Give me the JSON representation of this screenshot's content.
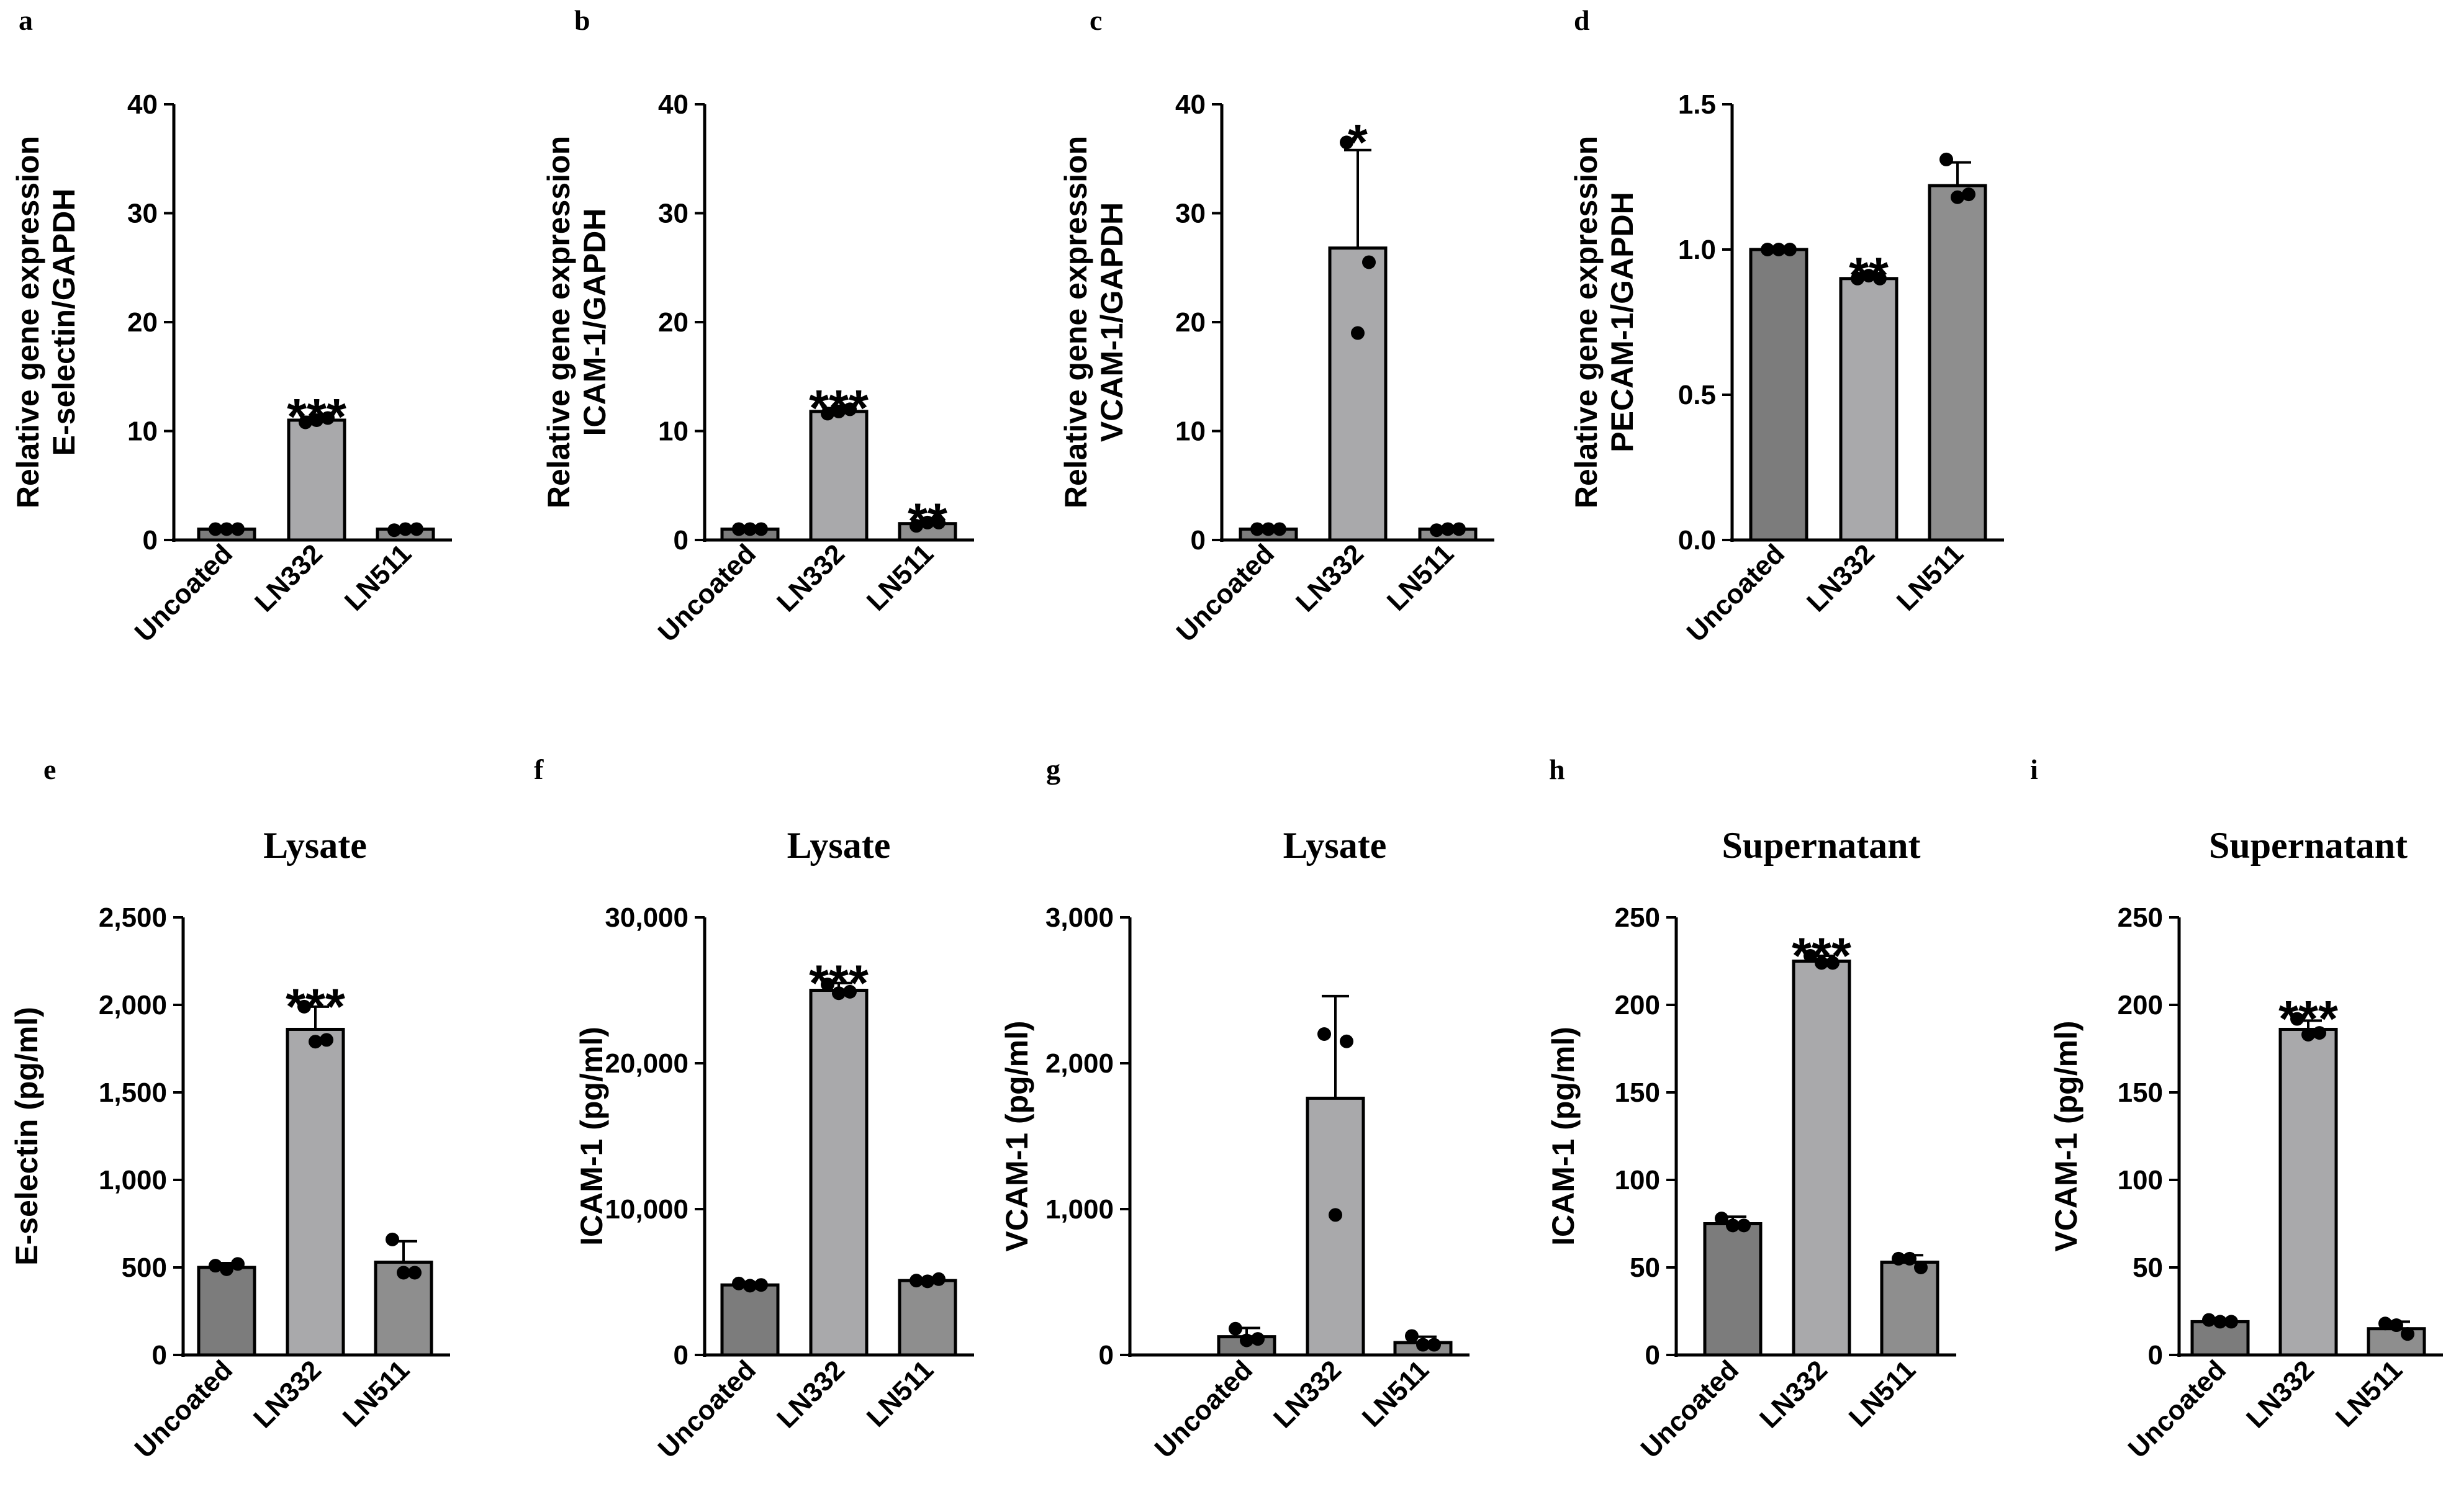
{
  "colors": {
    "dark": "#7c7c7c",
    "light": "#a9a9ab",
    "mid": "#8e8e8e",
    "axis": "#000000"
  },
  "chart_data": [
    {
      "panel": "a",
      "type": "bar",
      "title": "",
      "ylabel": [
        "Relative gene expression",
        "E-selectin/GAPDH"
      ],
      "categories": [
        "Uncoated",
        "LN332",
        "LN511"
      ],
      "values": [
        1,
        11,
        1
      ],
      "errors": [
        0.1,
        0.3,
        0.1
      ],
      "points": [
        [
          1,
          1,
          1
        ],
        [
          10.8,
          11.2,
          11.0
        ],
        [
          0.9,
          1.0,
          1.0
        ]
      ],
      "significance": [
        "",
        "***",
        ""
      ],
      "ylim": [
        0,
        40
      ],
      "yticks": [
        0,
        10,
        20,
        30,
        40
      ],
      "ytick_labels": [
        "0",
        "10",
        "20",
        "30",
        "40"
      ]
    },
    {
      "panel": "b",
      "type": "bar",
      "title": "",
      "ylabel": [
        "Relative gene expression",
        "ICAM-1/GAPDH"
      ],
      "categories": [
        "Uncoated",
        "LN332",
        "LN511"
      ],
      "values": [
        1,
        11.8,
        1.5
      ],
      "errors": [
        0.1,
        0.3,
        0.2
      ],
      "points": [
        [
          1,
          1,
          1
        ],
        [
          11.6,
          12.0,
          11.8
        ],
        [
          1.3,
          1.6,
          1.6
        ]
      ],
      "significance": [
        "",
        "***",
        "**"
      ],
      "ylim": [
        0,
        40
      ],
      "yticks": [
        0,
        10,
        20,
        30,
        40
      ],
      "ytick_labels": [
        "0",
        "10",
        "20",
        "30",
        "40"
      ]
    },
    {
      "panel": "c",
      "type": "bar",
      "title": "",
      "ylabel": [
        "Relative gene expression",
        "VCAM-1/GAPDH"
      ],
      "categories": [
        "Uncoated",
        "LN332",
        "LN511"
      ],
      "values": [
        1,
        26.8,
        1
      ],
      "errors": [
        0.1,
        9,
        0.1
      ],
      "points": [
        [
          1,
          1,
          1
        ],
        [
          36.5,
          25.5,
          19
        ],
        [
          0.9,
          1.0,
          1.0
        ]
      ],
      "significance": [
        "",
        "*",
        ""
      ],
      "ylim": [
        0,
        40
      ],
      "yticks": [
        0,
        10,
        20,
        30,
        40
      ],
      "ytick_labels": [
        "0",
        "10",
        "20",
        "30",
        "40"
      ]
    },
    {
      "panel": "d",
      "type": "bar",
      "title": "",
      "ylabel": [
        "Relative gene expression",
        "PECAM-1/GAPDH"
      ],
      "categories": [
        "Uncoated",
        "LN332",
        "LN511"
      ],
      "values": [
        1.0,
        0.9,
        1.22
      ],
      "errors": [
        0.005,
        0.01,
        0.08
      ],
      "points": [
        [
          1.0,
          1.0,
          1.0
        ],
        [
          0.9,
          0.9,
          0.91
        ],
        [
          1.31,
          1.19,
          1.18
        ]
      ],
      "significance": [
        "",
        "**",
        ""
      ],
      "ylim": [
        0,
        1.5
      ],
      "yticks": [
        0,
        0.5,
        1.0,
        1.5
      ],
      "ytick_labels": [
        "0.0",
        "0.5",
        "1.0",
        "1.5"
      ]
    },
    {
      "panel": "e",
      "type": "bar",
      "title": "Lysate",
      "ylabel": [
        "E-selectin (pg/ml)"
      ],
      "categories": [
        "Uncoated",
        "LN332",
        "LN511"
      ],
      "values": [
        500,
        1860,
        530
      ],
      "errors": [
        25,
        130,
        120
      ],
      "points": [
        [
          510,
          520,
          490
        ],
        [
          1990,
          1800,
          1790
        ],
        [
          660,
          470,
          470
        ]
      ],
      "significance": [
        "",
        "***",
        ""
      ],
      "ylim": [
        0,
        2500
      ],
      "yticks": [
        0,
        500,
        1000,
        1500,
        2000,
        2500
      ],
      "ytick_labels": [
        "0",
        "500",
        "1,000",
        "1,500",
        "2,000",
        "2,500"
      ]
    },
    {
      "panel": "f",
      "type": "bar",
      "title": "Lysate",
      "ylabel": [
        "ICAM-1 (pg/ml)"
      ],
      "categories": [
        "Uncoated",
        "LN332",
        "LN511"
      ],
      "values": [
        4800,
        25000,
        5100
      ],
      "errors": [
        150,
        500,
        150
      ],
      "points": [
        [
          4900,
          4800,
          4750
        ],
        [
          25400,
          24900,
          24800
        ],
        [
          5100,
          5200,
          5050
        ]
      ],
      "significance": [
        "",
        "***",
        ""
      ],
      "ylim": [
        0,
        30000
      ],
      "yticks": [
        0,
        10000,
        20000,
        30000
      ],
      "ytick_labels": [
        "0",
        "10,000",
        "20,000",
        "30,000"
      ]
    },
    {
      "panel": "g",
      "type": "bar",
      "title": "Lysate",
      "ylabel": [
        "VCAM-1 (pg/ml)"
      ],
      "categories": [
        "Uncoated",
        "LN332",
        "LN511"
      ],
      "values": [
        125,
        1760,
        85
      ],
      "errors": [
        60,
        700,
        40
      ],
      "points": [
        [
          180,
          110,
          100
        ],
        [
          2200,
          2150,
          960
        ],
        [
          130,
          70,
          70
        ]
      ],
      "significance": [
        "",
        "",
        ""
      ],
      "ylim": [
        0,
        3000
      ],
      "yticks": [
        0,
        1000,
        2000,
        3000
      ],
      "ytick_labels": [
        "0",
        "1,000",
        "2,000",
        "3,000"
      ]
    },
    {
      "panel": "h",
      "type": "bar",
      "title": "Supernatant",
      "ylabel": [
        "ICAM-1 (pg/ml)"
      ],
      "categories": [
        "Uncoated",
        "LN332",
        "LN511"
      ],
      "values": [
        75,
        225,
        53
      ],
      "errors": [
        4,
        3,
        4
      ],
      "points": [
        [
          78,
          74,
          74
        ],
        [
          228,
          224,
          224
        ],
        [
          55,
          50,
          55
        ]
      ],
      "significance": [
        "",
        "***",
        ""
      ],
      "ylim": [
        0,
        250
      ],
      "yticks": [
        0,
        50,
        100,
        150,
        200,
        250
      ],
      "ytick_labels": [
        "0",
        "50",
        "100",
        "150",
        "200",
        "250"
      ]
    },
    {
      "panel": "i",
      "type": "bar",
      "title": "Supernatant",
      "ylabel": [
        "VCAM-1 (pg/ml)"
      ],
      "categories": [
        "Uncoated",
        "LN332",
        "LN511"
      ],
      "values": [
        19,
        186,
        15
      ],
      "errors": [
        1,
        5,
        4
      ],
      "points": [
        [
          20,
          19,
          19
        ],
        [
          192,
          184,
          183
        ],
        [
          18,
          12,
          17
        ]
      ],
      "significance": [
        "",
        "***",
        ""
      ],
      "ylim": [
        0,
        250
      ],
      "yticks": [
        0,
        50,
        100,
        150,
        200,
        250
      ],
      "ytick_labels": [
        "0",
        "50",
        "100",
        "150",
        "200",
        "250"
      ]
    }
  ]
}
